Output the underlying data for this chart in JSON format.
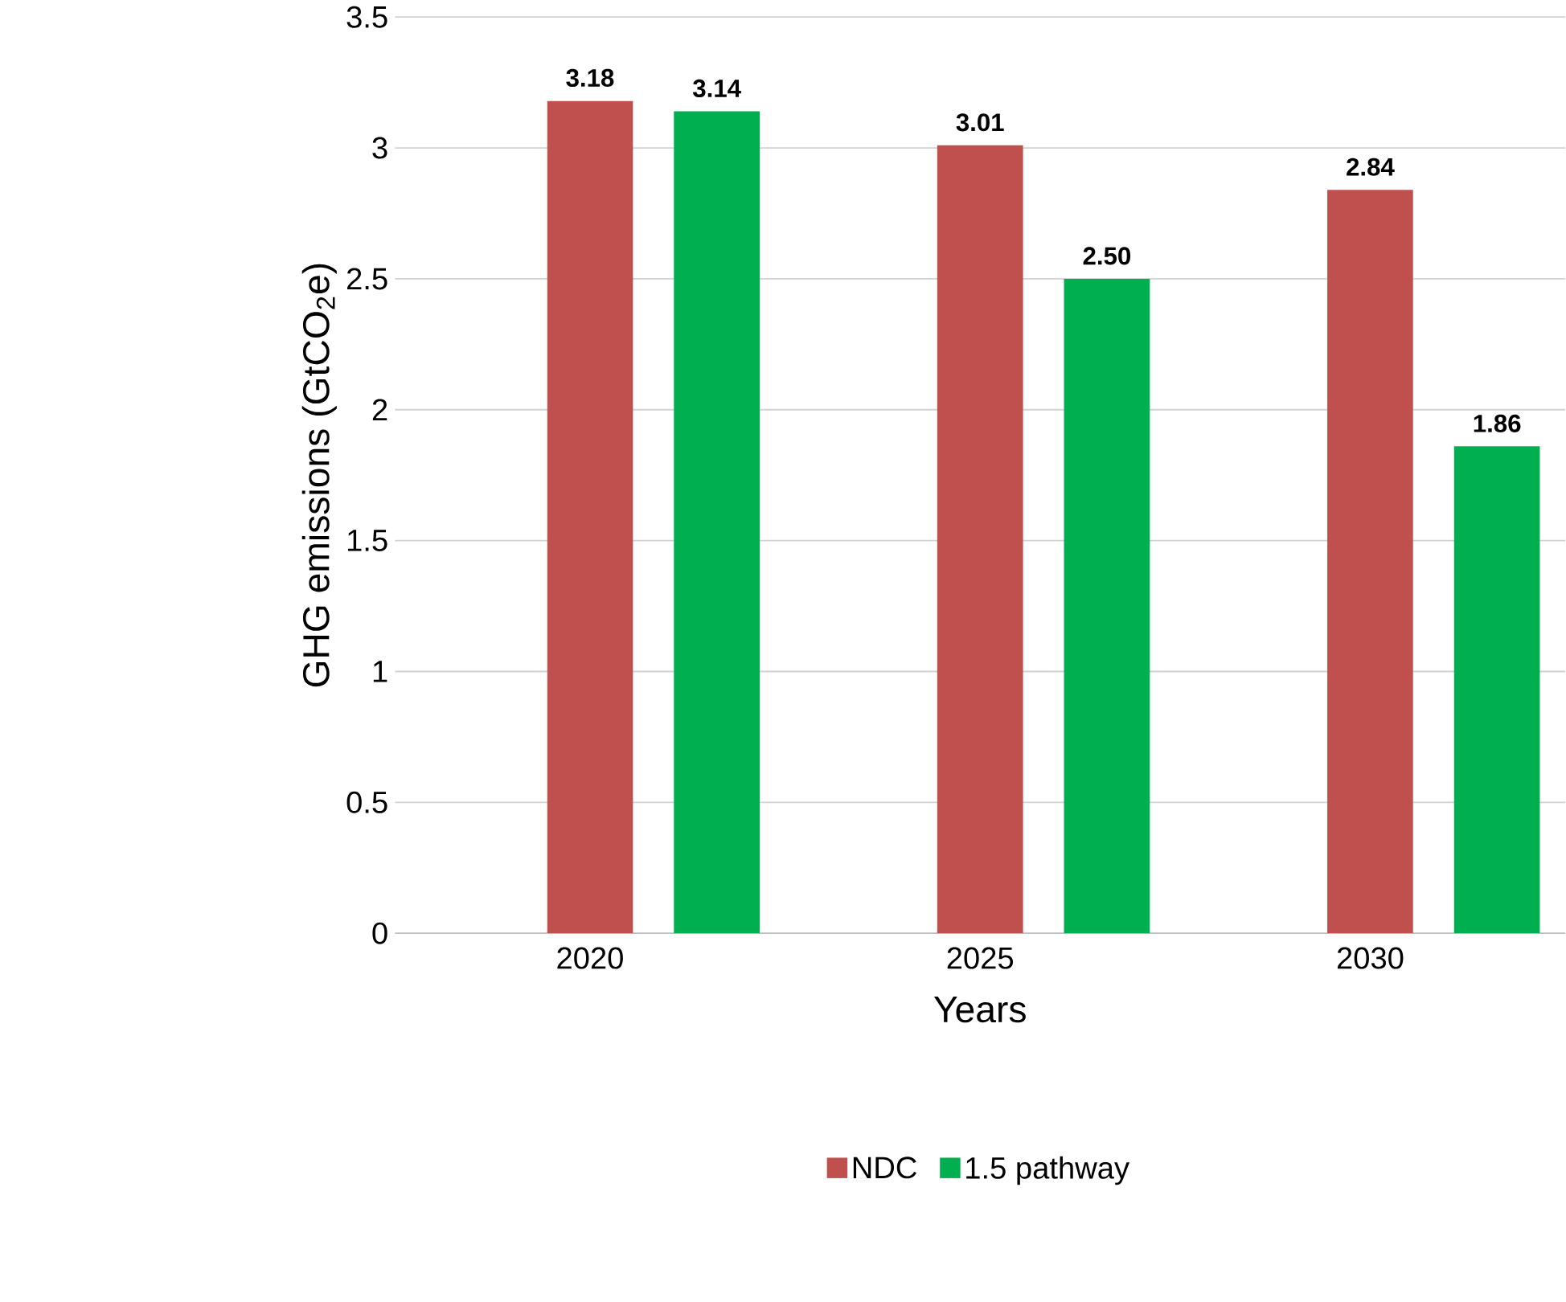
{
  "chart_data": {
    "type": "bar",
    "xlabel": "Years",
    "ylabel": "GHG emissions (GtCO$_{2}$e)",
    "categories": [
      "2020",
      "2025",
      "2030"
    ],
    "series": [
      {
        "name": "NDC",
        "color": "#c0504d",
        "values": [
          3.18,
          3.01,
          2.84
        ],
        "value_labels": [
          "3.18",
          "3.01",
          "2.84"
        ]
      },
      {
        "name": "1.5 pathway",
        "color": "#00b050",
        "values": [
          3.14,
          2.5,
          1.86
        ],
        "value_labels": [
          "3.14",
          "2.50",
          "1.86"
        ]
      }
    ],
    "ylim": [
      0,
      3.5
    ],
    "yticks": [
      0,
      0.5,
      1,
      1.5,
      2,
      2.5,
      3,
      3.5
    ],
    "grid": "y",
    "legend": "bottom"
  }
}
